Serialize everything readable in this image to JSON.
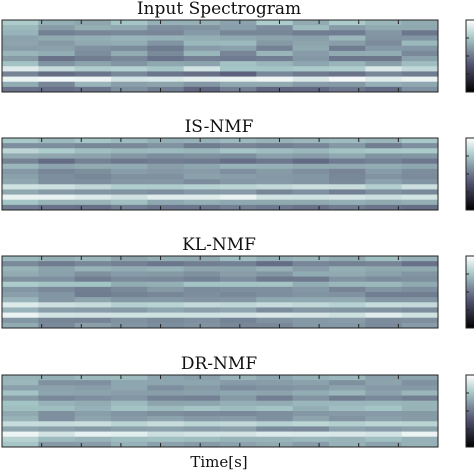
{
  "figure": {
    "xlabel": "Time[s]"
  },
  "chart_data": [
    {
      "type": "heatmap",
      "title": "Input Spectrogram",
      "rows": 14,
      "cols": 12,
      "colormap": "bone",
      "colorbar": true,
      "xlabel": "",
      "ylabel": ""
    },
    {
      "type": "heatmap",
      "title": "IS-NMF",
      "rows": 14,
      "cols": 12,
      "colormap": "bone",
      "colorbar": true,
      "xlabel": "",
      "ylabel": ""
    },
    {
      "type": "heatmap",
      "title": "KL-NMF",
      "rows": 14,
      "cols": 12,
      "colormap": "bone",
      "colorbar": true,
      "xlabel": "",
      "ylabel": ""
    },
    {
      "type": "heatmap",
      "title": "DR-NMF",
      "rows": 14,
      "cols": 12,
      "colormap": "bone",
      "colorbar": true,
      "xlabel": "Time[s]",
      "ylabel": ""
    }
  ]
}
